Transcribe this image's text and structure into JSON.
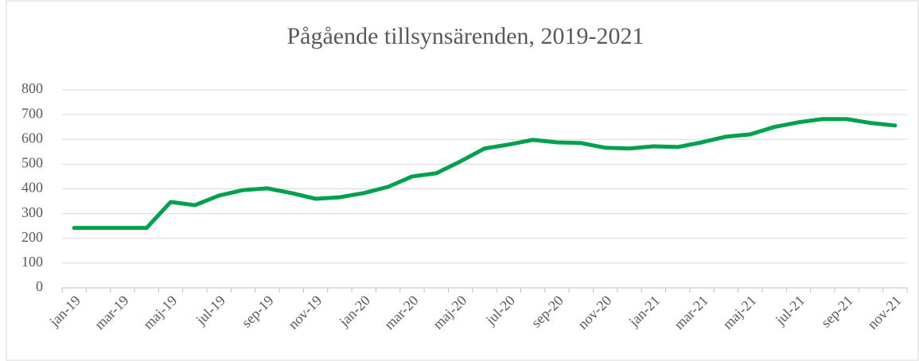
{
  "chart_data": {
    "type": "line",
    "title": "Pågående tillsynsärenden, 2019-2021",
    "categories": [
      "jan-19",
      null,
      "mar-19",
      null,
      "maj-19",
      null,
      "jul-19",
      null,
      "sep-19",
      null,
      "nov-19",
      null,
      "jan-20",
      null,
      "mar-20",
      null,
      "maj-20",
      null,
      "jul-20",
      null,
      "sep-20",
      null,
      "nov-20",
      null,
      "jan-21",
      null,
      "mar-21",
      null,
      "maj-21",
      null,
      "jul-21",
      null,
      "sep-21",
      null,
      "nov-21"
    ],
    "series": [
      {
        "name": "Pågående tillsynsärenden",
        "color": "#00a04e",
        "values": [
          242,
          242,
          242,
          242,
          347,
          334,
          373,
          395,
          402,
          383,
          360,
          366,
          383,
          408,
          450,
          463,
          511,
          563,
          579,
          598,
          588,
          585,
          566,
          563,
          572,
          569,
          588,
          611,
          620,
          650,
          669,
          682,
          682,
          666,
          656
        ]
      }
    ],
    "ylim": [
      0,
      800
    ],
    "yticks": [
      0,
      100,
      200,
      300,
      400,
      500,
      600,
      700,
      800
    ],
    "grid": true
  }
}
